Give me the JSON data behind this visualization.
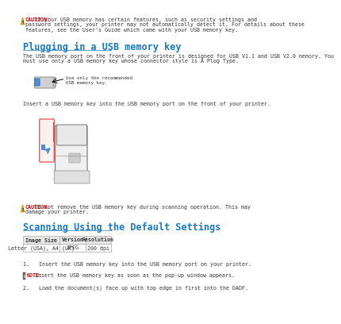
{
  "page_bg": "#ffffff",
  "caution_text_color": "#cc0000",
  "caution1_label": "CAUTION:",
  "caution1_lines": [
    " If your USB memory has certain features, such as security settings and",
    "password settings, your printer may not automatically detect it. For details about these",
    "features, see the User's Guide which came with your USB memory key."
  ],
  "heading1": "Plugging in a USB memory key",
  "heading_color": "#1a7abf",
  "para1_lines": [
    "The USB memory port on the front of your printer is designed for USB V1.1 and USB V2.0 memory. You",
    "must use only a USB memory key whose connector style is A Plug Type."
  ],
  "usb_label_lines": [
    "Use only the recommended",
    "USB memory key."
  ],
  "insert_text": "Insert a USB memory key into the USB memory port on the front of your printer.",
  "caution2_label": "CAUTION:",
  "caution2_lines": [
    " Do not remove the USB memory key during scanning operation. This may",
    "damage your printer."
  ],
  "heading2": "Scanning Using the Default Settings",
  "table_headers": [
    "Image Size",
    "Version",
    "Resolution"
  ],
  "table_row": [
    "Letter (USA), A4 (UK)",
    "JPEG",
    "200 dpi"
  ],
  "table_header_bg": "#e8e8e8",
  "table_row_bg": "#ffffff",
  "table_border": "#aaaaaa",
  "step1": "1.   Insert the USB memory key into the USB memory port on your printer.",
  "note_label": "NOTE:",
  "note_text": " Insert the USB memory key as soon as the pop-up window appears.",
  "step2": "2.   Load the document(s) face up with top edge in first into the DADF.",
  "body_text_color": "#333333",
  "small_fontsize": 4.8,
  "icon_yellow": "#f5c518",
  "icon_edge": "#a07000"
}
